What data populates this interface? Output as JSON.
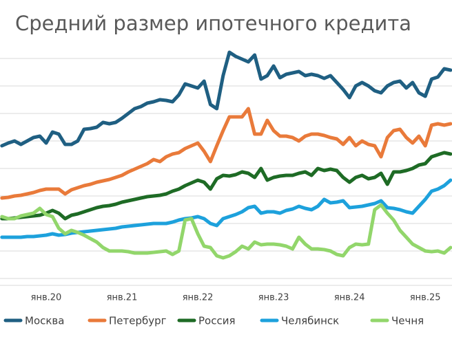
{
  "chart_data": {
    "type": "line",
    "title": "Средний размер ипотечного кредита",
    "categories": [
      null,
      null,
      null,
      null,
      null,
      null,
      null,
      "янв.20",
      null,
      null,
      null,
      null,
      null,
      null,
      null,
      null,
      null,
      null,
      null,
      "янв.21",
      null,
      null,
      null,
      null,
      null,
      null,
      null,
      null,
      null,
      null,
      null,
      "янв.22",
      null,
      null,
      null,
      null,
      null,
      null,
      null,
      null,
      null,
      null,
      null,
      "янв.23",
      null,
      null,
      null,
      null,
      null,
      null,
      null,
      null,
      null,
      null,
      null,
      "янв.24",
      null,
      null,
      null,
      null,
      null,
      null,
      null,
      null,
      null,
      null,
      null,
      "янв.25",
      null,
      null,
      null,
      null
    ],
    "ylim": [
      -10,
      335
    ],
    "grid_values": [
      0,
      40,
      80,
      120,
      160,
      200,
      240,
      280,
      320
    ],
    "grid": true,
    "legend": "bottom",
    "series": [
      {
        "name": "Москва",
        "color": "#1f5f82",
        "values": [
          193,
          197,
          200,
          195,
          200,
          205,
          207,
          197,
          213,
          210,
          195,
          195,
          200,
          217,
          218,
          220,
          227,
          225,
          227,
          233,
          240,
          247,
          250,
          255,
          257,
          260,
          259,
          257,
          267,
          283,
          280,
          277,
          287,
          253,
          247,
          295,
          329,
          323,
          319,
          315,
          325,
          290,
          295,
          309,
          292,
          297,
          299,
          301,
          295,
          297,
          295,
          291,
          295,
          285,
          275,
          263,
          280,
          285,
          280,
          273,
          270,
          280,
          285,
          287,
          277,
          285,
          270,
          265,
          290,
          293,
          305,
          303
        ]
      },
      {
        "name": "Петербург",
        "color": "#e97a3a",
        "values": [
          117,
          118,
          120,
          121,
          123,
          125,
          128,
          130,
          130,
          130,
          123,
          129,
          132,
          135,
          137,
          140,
          142,
          144,
          147,
          150,
          155,
          159,
          163,
          167,
          173,
          170,
          177,
          181,
          183,
          189,
          193,
          197,
          185,
          170,
          193,
          215,
          235,
          235,
          235,
          247,
          210,
          210,
          230,
          215,
          207,
          207,
          205,
          200,
          207,
          210,
          210,
          208,
          205,
          203,
          195,
          205,
          193,
          200,
          195,
          193,
          177,
          205,
          215,
          217,
          205,
          197,
          207,
          193,
          223,
          225,
          223,
          225
        ]
      },
      {
        "name": "Россия",
        "color": "#1e6b25",
        "values": [
          87,
          87,
          88,
          89,
          90,
          91,
          92,
          95,
          99,
          95,
          87,
          92,
          94,
          97,
          100,
          103,
          105,
          106,
          108,
          111,
          113,
          115,
          117,
          119,
          120,
          121,
          123,
          127,
          130,
          135,
          139,
          143,
          140,
          130,
          145,
          150,
          149,
          151,
          155,
          153,
          147,
          160,
          143,
          147,
          149,
          150,
          150,
          153,
          155,
          150,
          160,
          157,
          159,
          157,
          147,
          140,
          147,
          150,
          145,
          147,
          153,
          137,
          155,
          155,
          157,
          160,
          165,
          167,
          177,
          180,
          183,
          181
        ]
      },
      {
        "name": "Челябинск",
        "color": "#1da1dc",
        "values": [
          60,
          60,
          60,
          60,
          61,
          61,
          62,
          63,
          65,
          63,
          64,
          66,
          67,
          68,
          69,
          70,
          71,
          72,
          73,
          75,
          76,
          77,
          78,
          79,
          80,
          80,
          80,
          82,
          85,
          87,
          88,
          90,
          87,
          80,
          77,
          87,
          90,
          93,
          97,
          103,
          105,
          95,
          97,
          97,
          95,
          99,
          101,
          105,
          102,
          100,
          105,
          115,
          110,
          111,
          113,
          103,
          104,
          105,
          107,
          109,
          113,
          103,
          102,
          100,
          97,
          95,
          105,
          115,
          127,
          130,
          135,
          143
        ]
      },
      {
        "name": "Чечня",
        "color": "#92d66b",
        "values": [
          90,
          87,
          87,
          91,
          93,
          95,
          102,
          93,
          90,
          73,
          65,
          70,
          67,
          63,
          58,
          53,
          45,
          40,
          40,
          40,
          39,
          37,
          37,
          37,
          38,
          39,
          40,
          35,
          40,
          85,
          87,
          65,
          47,
          45,
          33,
          30,
          33,
          39,
          47,
          43,
          53,
          49,
          50,
          50,
          49,
          47,
          43,
          60,
          50,
          43,
          43,
          42,
          40,
          35,
          33,
          45,
          50,
          49,
          50,
          100,
          107,
          95,
          85,
          70,
          60,
          50,
          45,
          40,
          39,
          40,
          37,
          45
        ]
      }
    ]
  }
}
